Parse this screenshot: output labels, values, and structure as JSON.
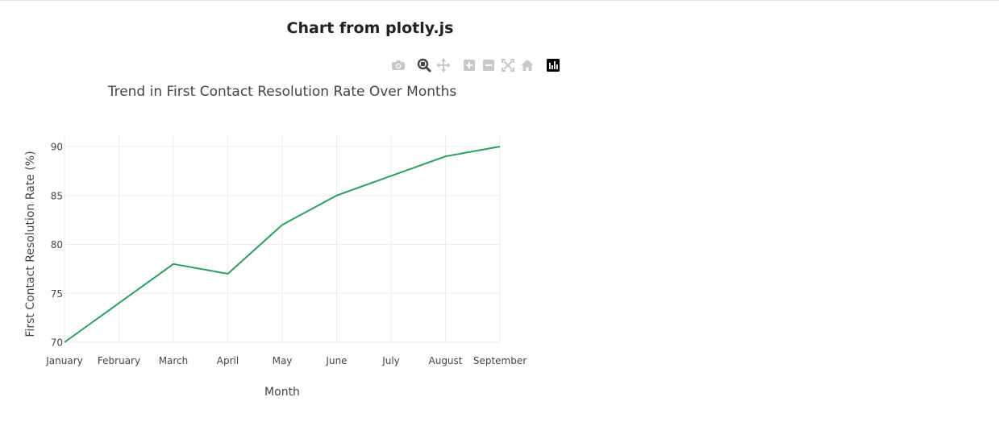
{
  "page": {
    "title": "Chart from plotly.js"
  },
  "modebar": {
    "buttons": [
      {
        "name": "camera-icon",
        "active": false
      },
      {
        "name": "zoom-icon",
        "active": true
      },
      {
        "name": "pan-icon",
        "active": false
      },
      {
        "name": "zoom-in-icon",
        "active": false
      },
      {
        "name": "zoom-out-icon",
        "active": false
      },
      {
        "name": "autoscale-icon",
        "active": false
      },
      {
        "name": "home-icon",
        "active": false
      },
      {
        "name": "plotly-logo-icon",
        "active": false
      }
    ]
  },
  "chart_data": {
    "type": "line",
    "title": "Trend in First Contact Resolution Rate Over Months",
    "xlabel": "Month",
    "ylabel": "First Contact Resolution Rate (%)",
    "categories": [
      "January",
      "February",
      "March",
      "April",
      "May",
      "June",
      "July",
      "August",
      "September"
    ],
    "values": [
      70,
      74,
      78,
      77,
      82,
      85,
      87,
      89,
      90
    ],
    "ylim": [
      70,
      90
    ],
    "yticks": [
      70,
      75,
      80,
      85,
      90
    ],
    "grid": true,
    "line_color": "#2e9e62",
    "grid_color": "#ebebeb"
  }
}
